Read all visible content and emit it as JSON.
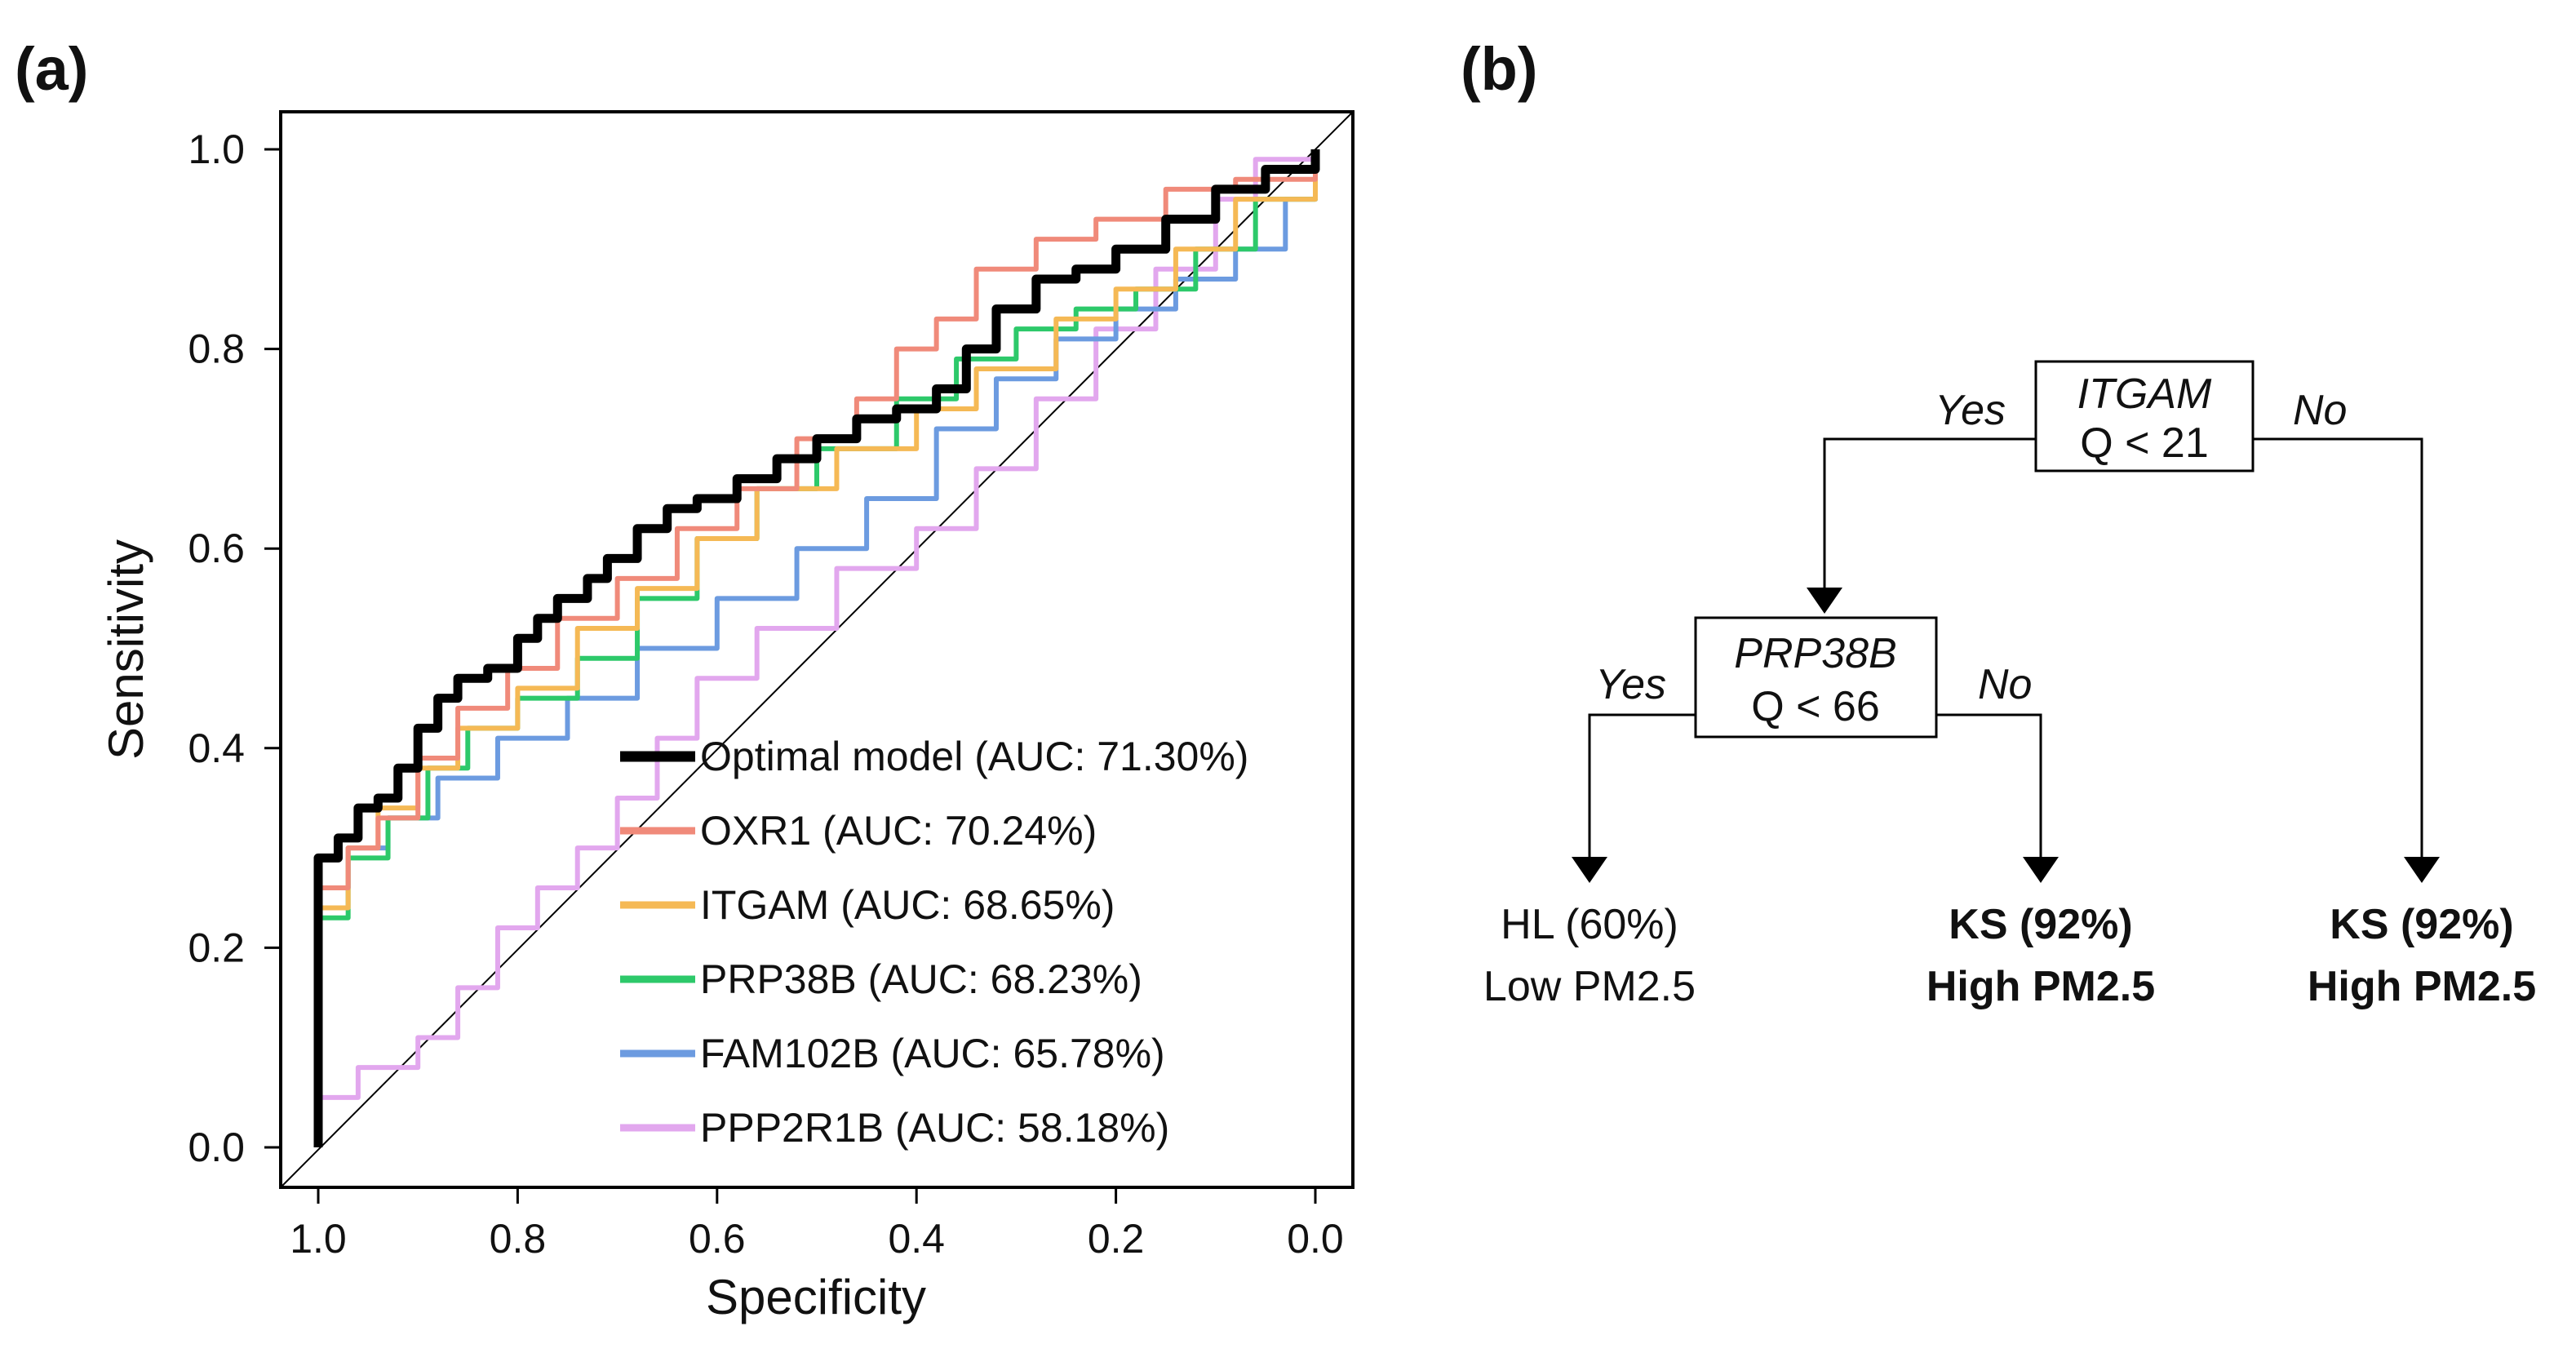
{
  "panel_a_label": "(a)",
  "panel_b_label": "(b)",
  "chart_data": {
    "type": "line",
    "title": "",
    "xlabel": "Specificity",
    "ylabel": "Sensitivity",
    "x_reversed": true,
    "xlim": [
      1.0,
      0.0
    ],
    "ylim": [
      0.0,
      1.0
    ],
    "xticks": [
      "1.0",
      "0.8",
      "0.6",
      "0.4",
      "0.2",
      "0.0"
    ],
    "yticks": [
      "0.0",
      "0.2",
      "0.4",
      "0.6",
      "0.8",
      "1.0"
    ],
    "reference_line": "diagonal",
    "legend_position": "bottom-right",
    "series": [
      {
        "name": "Optimal model",
        "label": "Optimal model (AUC: 71.30%)",
        "color": "#000000",
        "points": [
          [
            1.0,
            0.0
          ],
          [
            1.0,
            0.29
          ],
          [
            0.98,
            0.31
          ],
          [
            0.96,
            0.34
          ],
          [
            0.94,
            0.35
          ],
          [
            0.92,
            0.38
          ],
          [
            0.9,
            0.42
          ],
          [
            0.88,
            0.45
          ],
          [
            0.86,
            0.47
          ],
          [
            0.83,
            0.48
          ],
          [
            0.81,
            0.48
          ],
          [
            0.8,
            0.51
          ],
          [
            0.78,
            0.53
          ],
          [
            0.76,
            0.55
          ],
          [
            0.73,
            0.57
          ],
          [
            0.71,
            0.59
          ],
          [
            0.68,
            0.62
          ],
          [
            0.65,
            0.64
          ],
          [
            0.62,
            0.65
          ],
          [
            0.58,
            0.67
          ],
          [
            0.54,
            0.69
          ],
          [
            0.5,
            0.71
          ],
          [
            0.46,
            0.73
          ],
          [
            0.42,
            0.74
          ],
          [
            0.38,
            0.76
          ],
          [
            0.35,
            0.8
          ],
          [
            0.32,
            0.84
          ],
          [
            0.28,
            0.87
          ],
          [
            0.24,
            0.88
          ],
          [
            0.2,
            0.9
          ],
          [
            0.15,
            0.93
          ],
          [
            0.1,
            0.96
          ],
          [
            0.05,
            0.98
          ],
          [
            0.0,
            1.0
          ]
        ]
      },
      {
        "name": "OXR1",
        "label": "OXR1 (AUC: 70.24%)",
        "color": "#F08A7A",
        "points": [
          [
            1.0,
            0.0
          ],
          [
            1.0,
            0.26
          ],
          [
            0.97,
            0.3
          ],
          [
            0.94,
            0.33
          ],
          [
            0.9,
            0.39
          ],
          [
            0.86,
            0.44
          ],
          [
            0.81,
            0.48
          ],
          [
            0.76,
            0.53
          ],
          [
            0.7,
            0.57
          ],
          [
            0.64,
            0.62
          ],
          [
            0.58,
            0.66
          ],
          [
            0.52,
            0.71
          ],
          [
            0.46,
            0.75
          ],
          [
            0.42,
            0.8
          ],
          [
            0.38,
            0.83
          ],
          [
            0.34,
            0.88
          ],
          [
            0.28,
            0.91
          ],
          [
            0.22,
            0.93
          ],
          [
            0.15,
            0.96
          ],
          [
            0.08,
            0.97
          ],
          [
            0.0,
            1.0
          ]
        ]
      },
      {
        "name": "ITGAM",
        "label": "ITGAM (AUC: 68.65%)",
        "color": "#F5B955",
        "points": [
          [
            1.0,
            0.0
          ],
          [
            1.0,
            0.24
          ],
          [
            0.97,
            0.3
          ],
          [
            0.94,
            0.34
          ],
          [
            0.9,
            0.38
          ],
          [
            0.86,
            0.42
          ],
          [
            0.8,
            0.46
          ],
          [
            0.74,
            0.52
          ],
          [
            0.68,
            0.56
          ],
          [
            0.62,
            0.61
          ],
          [
            0.56,
            0.66
          ],
          [
            0.48,
            0.7
          ],
          [
            0.4,
            0.74
          ],
          [
            0.34,
            0.78
          ],
          [
            0.26,
            0.83
          ],
          [
            0.2,
            0.86
          ],
          [
            0.14,
            0.9
          ],
          [
            0.08,
            0.95
          ],
          [
            0.0,
            1.0
          ]
        ]
      },
      {
        "name": "PRP38B",
        "label": "PRP38B (AUC: 68.23%)",
        "color": "#2DC96A",
        "points": [
          [
            1.0,
            0.0
          ],
          [
            1.0,
            0.23
          ],
          [
            0.97,
            0.29
          ],
          [
            0.93,
            0.33
          ],
          [
            0.89,
            0.38
          ],
          [
            0.85,
            0.42
          ],
          [
            0.8,
            0.45
          ],
          [
            0.74,
            0.49
          ],
          [
            0.68,
            0.55
          ],
          [
            0.62,
            0.61
          ],
          [
            0.56,
            0.66
          ],
          [
            0.5,
            0.7
          ],
          [
            0.42,
            0.75
          ],
          [
            0.36,
            0.79
          ],
          [
            0.3,
            0.82
          ],
          [
            0.24,
            0.84
          ],
          [
            0.18,
            0.86
          ],
          [
            0.12,
            0.9
          ],
          [
            0.06,
            0.95
          ],
          [
            0.0,
            1.0
          ]
        ]
      },
      {
        "name": "FAM102B",
        "label": "FAM102B (AUC: 65.78%)",
        "color": "#6C9BE0",
        "points": [
          [
            1.0,
            0.0
          ],
          [
            1.0,
            0.26
          ],
          [
            0.97,
            0.3
          ],
          [
            0.93,
            0.33
          ],
          [
            0.88,
            0.37
          ],
          [
            0.82,
            0.41
          ],
          [
            0.75,
            0.45
          ],
          [
            0.68,
            0.5
          ],
          [
            0.6,
            0.55
          ],
          [
            0.52,
            0.6
          ],
          [
            0.45,
            0.65
          ],
          [
            0.38,
            0.72
          ],
          [
            0.32,
            0.77
          ],
          [
            0.26,
            0.81
          ],
          [
            0.2,
            0.84
          ],
          [
            0.14,
            0.87
          ],
          [
            0.08,
            0.9
          ],
          [
            0.03,
            0.95
          ],
          [
            0.0,
            1.0
          ]
        ]
      },
      {
        "name": "PPP2R1B",
        "label": "PPP2R1B (AUC: 58.18%)",
        "color": "#E2A7EE",
        "points": [
          [
            1.0,
            0.0
          ],
          [
            1.0,
            0.05
          ],
          [
            0.96,
            0.08
          ],
          [
            0.9,
            0.11
          ],
          [
            0.86,
            0.16
          ],
          [
            0.82,
            0.22
          ],
          [
            0.78,
            0.26
          ],
          [
            0.74,
            0.3
          ],
          [
            0.7,
            0.35
          ],
          [
            0.66,
            0.41
          ],
          [
            0.62,
            0.47
          ],
          [
            0.56,
            0.52
          ],
          [
            0.48,
            0.58
          ],
          [
            0.4,
            0.62
          ],
          [
            0.34,
            0.68
          ],
          [
            0.28,
            0.75
          ],
          [
            0.22,
            0.82
          ],
          [
            0.16,
            0.88
          ],
          [
            0.1,
            0.95
          ],
          [
            0.06,
            0.99
          ],
          [
            0.0,
            1.0
          ]
        ]
      }
    ]
  },
  "tree": {
    "root": {
      "gene": "ITGAM",
      "condition": "Q < 21",
      "yes": "Yes",
      "no": "No"
    },
    "inner": {
      "gene": "PRP38B",
      "condition": "Q < 66",
      "yes": "Yes",
      "no": "No"
    },
    "leaves": [
      {
        "class": "HL (60%)",
        "level": "Low PM2.5",
        "bold": false
      },
      {
        "class": "KS (92%)",
        "level": "High PM2.5",
        "bold": true
      },
      {
        "class": "KS (92%)",
        "level": "High PM2.5",
        "bold": true
      }
    ]
  }
}
